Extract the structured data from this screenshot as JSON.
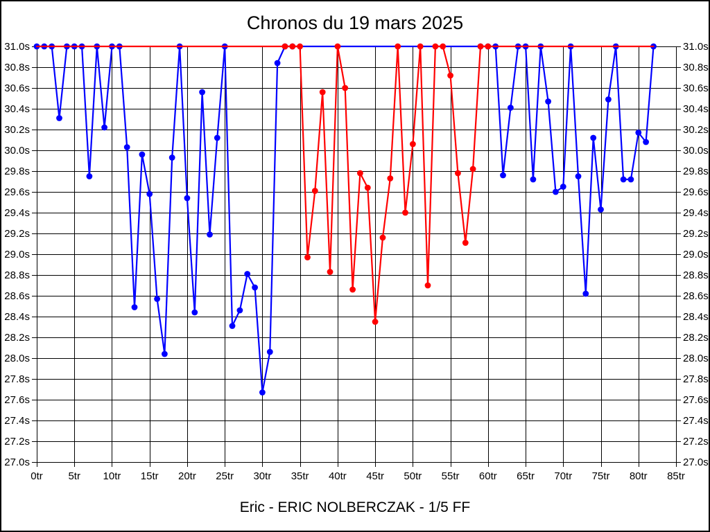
{
  "chart_data": {
    "type": "line",
    "title": "Chronos du 19 mars 2025",
    "footer": "Eric - ERIC NOLBERCZAK - 1/5 FF",
    "x_unit": "tr",
    "y_unit": "s",
    "xlim": [
      0,
      85
    ],
    "ylim": [
      27.0,
      31.0
    ],
    "x_tick_step": 5,
    "y_tick_step": 0.2,
    "grid": true,
    "legend": "none",
    "x_tick_labels": [
      "0tr",
      "5tr",
      "10tr",
      "15tr",
      "20tr",
      "25tr",
      "30tr",
      "35tr",
      "40tr",
      "45tr",
      "50tr",
      "55tr",
      "60tr",
      "65tr",
      "70tr",
      "75tr",
      "80tr",
      "85tr"
    ],
    "y_tick_labels": [
      "31.0s",
      "30.8s",
      "30.6s",
      "30.4s",
      "30.2s",
      "30.0s",
      "29.8s",
      "29.6s",
      "29.4s",
      "29.2s",
      "29.0s",
      "28.8s",
      "28.6s",
      "28.4s",
      "28.2s",
      "28.0s",
      "27.8s",
      "27.6s",
      "27.4s",
      "27.2s",
      "27.0s"
    ],
    "series": [
      {
        "name": "blue-laps",
        "color": "#0000ff",
        "points": [
          [
            0,
            31.0
          ],
          [
            1,
            31.0
          ],
          [
            2,
            31.0
          ],
          [
            3,
            30.31
          ],
          [
            4,
            31.0
          ],
          [
            5,
            31.0
          ],
          [
            6,
            31.0
          ],
          [
            7,
            29.75
          ],
          [
            8,
            31.0
          ],
          [
            9,
            30.22
          ],
          [
            10,
            31.0
          ],
          [
            11,
            31.0
          ],
          [
            12,
            30.03
          ],
          [
            13,
            28.49
          ],
          [
            14,
            29.96
          ],
          [
            15,
            29.58
          ],
          [
            16,
            28.57
          ],
          [
            17,
            28.04
          ],
          [
            18,
            29.93
          ],
          [
            19,
            31.0
          ],
          [
            20,
            29.54
          ],
          [
            21,
            28.44
          ],
          [
            22,
            30.56
          ],
          [
            23,
            29.19
          ],
          [
            24,
            30.12
          ],
          [
            25,
            31.0
          ],
          [
            26,
            28.31
          ],
          [
            27,
            28.46
          ],
          [
            28,
            28.81
          ],
          [
            29,
            28.68
          ],
          [
            30,
            27.67
          ],
          [
            31,
            28.06
          ],
          [
            32,
            30.84
          ],
          [
            33,
            31.0
          ],
          [
            34,
            31.0
          ],
          [
            59,
            31.0
          ],
          [
            60,
            31.0
          ],
          [
            61,
            31.0
          ],
          [
            62,
            29.76
          ],
          [
            63,
            30.41
          ],
          [
            64,
            31.0
          ],
          [
            65,
            31.0
          ],
          [
            66,
            29.72
          ],
          [
            67,
            31.0
          ],
          [
            68,
            30.47
          ],
          [
            69,
            29.6
          ],
          [
            70,
            29.65
          ],
          [
            71,
            31.0
          ],
          [
            72,
            29.75
          ],
          [
            73,
            28.62
          ],
          [
            74,
            30.12
          ],
          [
            75,
            29.43
          ],
          [
            76,
            30.49
          ],
          [
            77,
            31.0
          ],
          [
            78,
            29.72
          ],
          [
            79,
            29.72
          ],
          [
            80,
            30.17
          ],
          [
            81,
            30.08
          ],
          [
            82,
            31.0
          ]
        ]
      },
      {
        "name": "red-laps",
        "color": "#ff0000",
        "marker_lap_range": [
          33,
          60
        ],
        "points": [
          [
            0,
            31.0
          ],
          [
            1,
            31.0
          ],
          [
            2,
            31.0
          ],
          [
            3,
            31.0
          ],
          [
            4,
            31.0
          ],
          [
            5,
            31.0
          ],
          [
            6,
            31.0
          ],
          [
            7,
            31.0
          ],
          [
            8,
            31.0
          ],
          [
            9,
            31.0
          ],
          [
            10,
            31.0
          ],
          [
            11,
            31.0
          ],
          [
            12,
            31.0
          ],
          [
            13,
            31.0
          ],
          [
            14,
            31.0
          ],
          [
            15,
            31.0
          ],
          [
            16,
            31.0
          ],
          [
            17,
            31.0
          ],
          [
            18,
            31.0
          ],
          [
            19,
            31.0
          ],
          [
            20,
            31.0
          ],
          [
            21,
            31.0
          ],
          [
            22,
            31.0
          ],
          [
            23,
            31.0
          ],
          [
            24,
            31.0
          ],
          [
            25,
            31.0
          ],
          [
            26,
            31.0
          ],
          [
            27,
            31.0
          ],
          [
            28,
            31.0
          ],
          [
            29,
            31.0
          ],
          [
            30,
            31.0
          ],
          [
            31,
            31.0
          ],
          [
            32,
            31.0
          ],
          [
            33,
            31.0
          ],
          [
            34,
            31.0
          ],
          [
            35,
            31.0
          ],
          [
            36,
            28.97
          ],
          [
            37,
            29.61
          ],
          [
            38,
            30.56
          ],
          [
            39,
            28.83
          ],
          [
            40,
            31.0
          ],
          [
            41,
            30.6
          ],
          [
            42,
            28.66
          ],
          [
            43,
            29.78
          ],
          [
            44,
            29.64
          ],
          [
            45,
            28.35
          ],
          [
            46,
            29.16
          ],
          [
            47,
            29.73
          ],
          [
            48,
            31.0
          ],
          [
            49,
            29.4
          ],
          [
            50,
            30.06
          ],
          [
            51,
            31.0
          ],
          [
            52,
            28.7
          ],
          [
            53,
            31.0
          ],
          [
            54,
            31.0
          ],
          [
            55,
            30.72
          ],
          [
            56,
            29.78
          ],
          [
            57,
            29.11
          ],
          [
            58,
            29.82
          ],
          [
            59,
            31.0
          ],
          [
            60,
            31.0
          ],
          [
            61,
            31.0
          ],
          [
            62,
            31.0
          ],
          [
            63,
            31.0
          ],
          [
            64,
            31.0
          ],
          [
            65,
            31.0
          ],
          [
            66,
            31.0
          ],
          [
            67,
            31.0
          ],
          [
            68,
            31.0
          ],
          [
            69,
            31.0
          ],
          [
            70,
            31.0
          ],
          [
            71,
            31.0
          ],
          [
            72,
            31.0
          ],
          [
            73,
            31.0
          ],
          [
            74,
            31.0
          ],
          [
            75,
            31.0
          ],
          [
            76,
            31.0
          ],
          [
            77,
            31.0
          ],
          [
            78,
            31.0
          ],
          [
            79,
            31.0
          ],
          [
            80,
            31.0
          ],
          [
            81,
            31.0
          ],
          [
            82,
            31.0
          ]
        ]
      }
    ]
  }
}
